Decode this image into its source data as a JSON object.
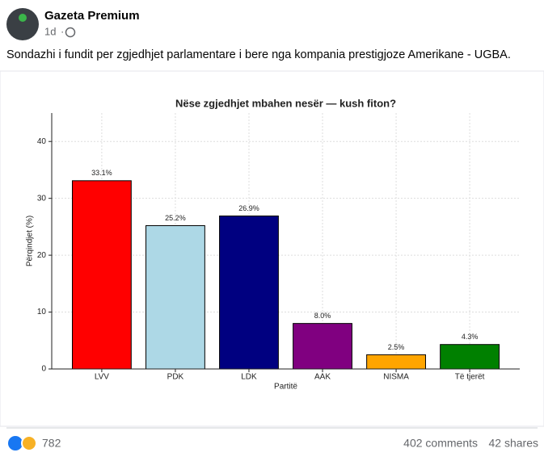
{
  "post": {
    "author": "Gazeta Premium",
    "time": "1d",
    "text": "Sondazhi i fundit per zgjedhjet parlamentare i bere nga kompania prestigjoze Amerikane - UGBA.",
    "reactions": "782",
    "comments": "402 comments",
    "shares": "42 shares"
  },
  "chart_data": {
    "type": "bar",
    "title": "Nëse zgjedhjet mbahen nesër — kush fiton?",
    "x_label": "Partitë",
    "y_label": "Përqindjet (%)",
    "categories": [
      "LVV",
      "PDK",
      "LDK",
      "AAK",
      "NISMA",
      "Të tjerët"
    ],
    "values": [
      33.1,
      25.2,
      26.9,
      8.0,
      2.5,
      4.3
    ],
    "value_labels": [
      "33.1%",
      "25.2%",
      "26.9%",
      "8.0%",
      "2.5%",
      "4.3%"
    ],
    "colors": [
      "#ff0000",
      "#add8e6",
      "#000080",
      "#800080",
      "#ffa500",
      "#008000"
    ],
    "ylim": [
      0,
      45
    ],
    "yticks": [
      0,
      10,
      20,
      30,
      40
    ],
    "grid": true
  }
}
